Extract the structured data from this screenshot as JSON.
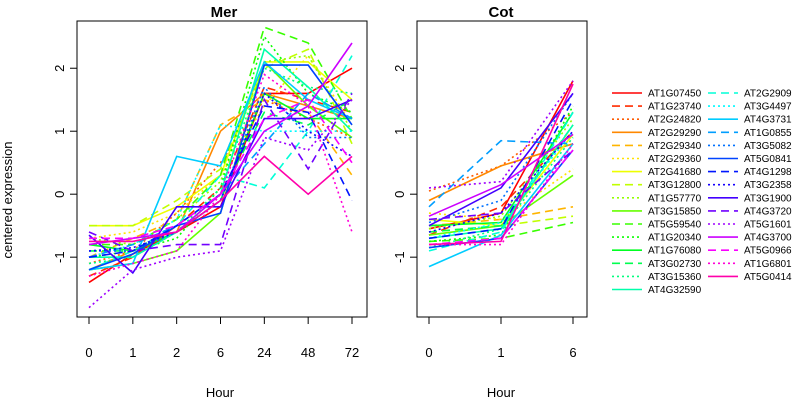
{
  "chart_data": {
    "type": "line",
    "ylabel": "centered expression",
    "xlabel": "Hour",
    "ylim": [
      -1.95,
      2.75
    ],
    "y_ticks": [
      -1,
      0,
      1,
      2
    ],
    "grid": false,
    "legend_position": "right",
    "series_styles": [
      {
        "name": "AT1G07450",
        "color": "#FF0000",
        "dash": "solid"
      },
      {
        "name": "AT1G23740",
        "color": "#FF2D00",
        "dash": "dashed"
      },
      {
        "name": "AT2G24820",
        "color": "#FF5A00",
        "dash": "dotted"
      },
      {
        "name": "AT2G29290",
        "color": "#FF8800",
        "dash": "solid"
      },
      {
        "name": "AT2G29340",
        "color": "#FFB500",
        "dash": "dashed"
      },
      {
        "name": "AT2G29360",
        "color": "#FFE300",
        "dash": "dotted"
      },
      {
        "name": "AT2G41680",
        "color": "#EEFF00",
        "dash": "solid"
      },
      {
        "name": "AT3G12800",
        "color": "#C1FF00",
        "dash": "dashed"
      },
      {
        "name": "AT1G57770",
        "color": "#93FF00",
        "dash": "dotted"
      },
      {
        "name": "AT3G15850",
        "color": "#66FF00",
        "dash": "solid"
      },
      {
        "name": "AT5G59540",
        "color": "#38FF00",
        "dash": "dashed"
      },
      {
        "name": "AT1G20340",
        "color": "#0BFF00",
        "dash": "dotted"
      },
      {
        "name": "AT1G76080",
        "color": "#00FF22",
        "dash": "solid"
      },
      {
        "name": "AT3G02730",
        "color": "#00FF4F",
        "dash": "dashed"
      },
      {
        "name": "AT3G15360",
        "color": "#00FF7D",
        "dash": "dotted"
      },
      {
        "name": "AT4G32590",
        "color": "#00FFAA",
        "dash": "solid"
      },
      {
        "name": "AT2G2909",
        "color": "#00FFD7",
        "dash": "dashed"
      },
      {
        "name": "AT3G4497",
        "color": "#00F9FF",
        "dash": "dotted"
      },
      {
        "name": "AT4G3731",
        "color": "#00CCFF",
        "dash": "solid"
      },
      {
        "name": "AT1G0855",
        "color": "#009EFF",
        "dash": "dashed"
      },
      {
        "name": "AT3G5082",
        "color": "#0071FF",
        "dash": "dotted"
      },
      {
        "name": "AT5G0841",
        "color": "#0044FF",
        "dash": "solid"
      },
      {
        "name": "AT4G1298",
        "color": "#0016FF",
        "dash": "dashed"
      },
      {
        "name": "AT3G2358",
        "color": "#1600FF",
        "dash": "dotted"
      },
      {
        "name": "AT3G1900",
        "color": "#4300FF",
        "dash": "solid"
      },
      {
        "name": "AT4G3720",
        "color": "#7100FF",
        "dash": "dashed"
      },
      {
        "name": "AT5G1601",
        "color": "#9E00FF",
        "dash": "dotted"
      },
      {
        "name": "AT4G3700",
        "color": "#CC00FF",
        "dash": "solid"
      },
      {
        "name": "AT5G0966",
        "color": "#F900FF",
        "dash": "dashed"
      },
      {
        "name": "AT1G6801",
        "color": "#FF00D7",
        "dash": "dotted"
      },
      {
        "name": "AT5G0414",
        "color": "#FF00AA",
        "dash": "solid"
      }
    ],
    "panels": [
      {
        "title": "Mer",
        "categories": [
          "0",
          "1",
          "2",
          "6",
          "24",
          "48",
          "72"
        ],
        "series": [
          {
            "name": "AT1G07450",
            "values": [
              -1.4,
              -0.95,
              -0.6,
              -0.2,
              1.6,
              1.6,
              2.0
            ]
          },
          {
            "name": "AT1G23740",
            "values": [
              -1.3,
              -1.0,
              -0.5,
              0.1,
              1.7,
              1.5,
              1.3
            ]
          },
          {
            "name": "AT2G24820",
            "values": [
              -1.1,
              -0.9,
              -0.3,
              0.5,
              1.5,
              1.2,
              0.9
            ]
          },
          {
            "name": "AT2G29290",
            "values": [
              -1.2,
              -0.9,
              -0.6,
              1.0,
              1.6,
              1.4,
              1.2
            ]
          },
          {
            "name": "AT2G29340",
            "values": [
              -1.0,
              -0.7,
              -0.4,
              1.1,
              1.5,
              1.3,
              0.3
            ]
          },
          {
            "name": "AT2G29360",
            "values": [
              -0.7,
              -0.6,
              -0.3,
              0.3,
              1.4,
              2.2,
              1.1
            ]
          },
          {
            "name": "AT2G41680",
            "values": [
              -0.5,
              -0.5,
              -0.2,
              0.3,
              2.1,
              2.1,
              1.5
            ]
          },
          {
            "name": "AT3G12800",
            "values": [
              -0.5,
              -0.5,
              -0.1,
              0.4,
              2.0,
              2.3,
              0.8
            ]
          },
          {
            "name": "AT1G57770",
            "values": [
              -0.7,
              -0.8,
              -0.4,
              0.2,
              2.1,
              2.2,
              1.0
            ]
          },
          {
            "name": "AT3G15850",
            "values": [
              -1.2,
              -1.1,
              -0.9,
              -0.3,
              2.1,
              1.4,
              0.9
            ]
          },
          {
            "name": "AT5G59540",
            "values": [
              -0.8,
              -0.8,
              -0.4,
              0.3,
              2.65,
              2.4,
              1.2
            ]
          },
          {
            "name": "AT1G20340",
            "values": [
              -1.0,
              -0.9,
              -0.7,
              0.1,
              2.5,
              1.6,
              1.3
            ]
          },
          {
            "name": "AT1G76080",
            "values": [
              -0.8,
              -0.9,
              -0.6,
              -0.1,
              1.6,
              1.2,
              1.2
            ]
          },
          {
            "name": "AT3G02730",
            "values": [
              -0.9,
              -0.9,
              -0.5,
              0.0,
              1.3,
              1.1,
              1.5
            ]
          },
          {
            "name": "AT3G15360",
            "values": [
              -1.1,
              -1.0,
              -0.6,
              0.1,
              2.0,
              1.7,
              1.6
            ]
          },
          {
            "name": "AT4G32590",
            "values": [
              -1.0,
              -1.0,
              -0.6,
              0.0,
              2.3,
              1.7,
              1.0
            ]
          },
          {
            "name": "AT2G2909",
            "values": [
              -1.2,
              -0.9,
              -0.5,
              0.3,
              0.1,
              1.0,
              2.2
            ]
          },
          {
            "name": "AT3G4497",
            "values": [
              -1.0,
              -0.8,
              -0.4,
              1.1,
              1.0,
              1.0,
              1.0
            ]
          },
          {
            "name": "AT4G3731",
            "values": [
              -1.2,
              -1.1,
              0.6,
              0.45,
              2.1,
              1.5,
              1.2
            ]
          },
          {
            "name": "AT1G0855",
            "values": [
              -1.0,
              -0.8,
              -0.5,
              0.0,
              0.8,
              1.6,
              1.2
            ]
          },
          {
            "name": "AT3G5082",
            "values": [
              -0.9,
              -0.9,
              -0.6,
              -0.1,
              1.7,
              0.9,
              0.9
            ]
          },
          {
            "name": "AT5G0841",
            "values": [
              -1.2,
              -0.95,
              -0.5,
              -0.3,
              2.05,
              2.05,
              1.1
            ]
          },
          {
            "name": "AT4G1298",
            "values": [
              -1.0,
              -0.9,
              -0.5,
              0.0,
              1.4,
              1.3,
              -0.1
            ]
          },
          {
            "name": "AT3G2358",
            "values": [
              -0.9,
              -0.85,
              -0.6,
              -0.1,
              1.6,
              1.0,
              0.6
            ]
          },
          {
            "name": "AT3G1900",
            "values": [
              -0.65,
              -1.25,
              -0.2,
              -0.2,
              1.2,
              1.2,
              1.5
            ]
          },
          {
            "name": "AT4G3720",
            "values": [
              -0.6,
              -0.9,
              -0.8,
              -0.8,
              1.5,
              0.4,
              1.6
            ]
          },
          {
            "name": "AT5G1601",
            "values": [
              -1.8,
              -1.2,
              -1.0,
              -0.9,
              0.9,
              0.7,
              1.5
            ]
          },
          {
            "name": "AT4G3700",
            "values": [
              -0.8,
              -0.7,
              -0.6,
              0.0,
              1.0,
              1.4,
              2.4
            ]
          },
          {
            "name": "AT5G0966",
            "values": [
              -0.7,
              -0.7,
              -0.5,
              0.0,
              1.2,
              1.5,
              0.5
            ]
          },
          {
            "name": "AT1G6801",
            "values": [
              -1.3,
              -1.1,
              -0.9,
              0.0,
              1.9,
              1.4,
              -0.6
            ]
          },
          {
            "name": "AT5G0414",
            "values": [
              -0.75,
              -0.75,
              -0.6,
              -0.1,
              0.6,
              0.0,
              0.6
            ]
          }
        ]
      },
      {
        "title": "Cot",
        "categories": [
          "0",
          "1",
          "6"
        ],
        "series": [
          {
            "name": "AT1G07450",
            "values": [
              -0.55,
              -0.3,
              1.8
            ]
          },
          {
            "name": "AT1G23740",
            "values": [
              -0.65,
              -0.2,
              1.0
            ]
          },
          {
            "name": "AT2G24820",
            "values": [
              0.05,
              0.45,
              1.3
            ]
          },
          {
            "name": "AT2G29290",
            "values": [
              -0.1,
              0.45,
              0.8
            ]
          },
          {
            "name": "AT2G29340",
            "values": [
              -0.5,
              -0.4,
              -0.2
            ]
          },
          {
            "name": "AT2G29360",
            "values": [
              -0.3,
              -0.4,
              0.4
            ]
          },
          {
            "name": "AT2G41680",
            "values": [
              -0.4,
              -0.5,
              0.95
            ]
          },
          {
            "name": "AT3G12800",
            "values": [
              -0.6,
              -0.5,
              -0.35
            ]
          },
          {
            "name": "AT1G57770",
            "values": [
              -0.55,
              -0.35,
              1.2
            ]
          },
          {
            "name": "AT3G15850",
            "values": [
              -0.65,
              -0.5,
              0.3
            ]
          },
          {
            "name": "AT5G59540",
            "values": [
              -0.75,
              -0.7,
              -0.45
            ]
          },
          {
            "name": "AT1G20340",
            "values": [
              -0.75,
              -0.65,
              1.4
            ]
          },
          {
            "name": "AT1G76080",
            "values": [
              -0.5,
              -0.45,
              1.3
            ]
          },
          {
            "name": "AT3G02730",
            "values": [
              -0.6,
              -0.5,
              1.1
            ]
          },
          {
            "name": "AT3G15360",
            "values": [
              -0.85,
              -0.55,
              0.9
            ]
          },
          {
            "name": "AT4G32590",
            "values": [
              -0.7,
              -0.55,
              1.1
            ]
          },
          {
            "name": "AT2G2909",
            "values": [
              -0.9,
              -0.6,
              1.3
            ]
          },
          {
            "name": "AT3G4497",
            "values": [
              -0.7,
              -0.45,
              1.0
            ]
          },
          {
            "name": "AT4G3731",
            "values": [
              -1.15,
              -0.65,
              0.8
            ]
          },
          {
            "name": "AT1G0855",
            "values": [
              -0.2,
              0.85,
              0.8
            ]
          },
          {
            "name": "AT3G5082",
            "values": [
              -0.45,
              -0.1,
              1.6
            ]
          },
          {
            "name": "AT5G0841",
            "values": [
              -0.85,
              -0.7,
              0.7
            ]
          },
          {
            "name": "AT4G1298",
            "values": [
              -0.7,
              -0.55,
              1.5
            ]
          },
          {
            "name": "AT3G2358",
            "values": [
              -0.6,
              -0.3,
              1.0
            ]
          },
          {
            "name": "AT3G1900",
            "values": [
              -0.5,
              0.1,
              1.6
            ]
          },
          {
            "name": "AT4G3720",
            "values": [
              -0.4,
              -0.3,
              0.7
            ]
          },
          {
            "name": "AT5G1601",
            "values": [
              0.1,
              0.2,
              1.8
            ]
          },
          {
            "name": "AT4G3700",
            "values": [
              -0.35,
              0.15,
              0.95
            ]
          },
          {
            "name": "AT5G0966",
            "values": [
              -0.8,
              -0.7,
              0.7
            ]
          },
          {
            "name": "AT1G6801",
            "values": [
              -0.8,
              -0.8,
              0.8
            ]
          },
          {
            "name": "AT5G0414",
            "values": [
              -0.8,
              -0.75,
              1.75
            ]
          }
        ]
      }
    ]
  }
}
